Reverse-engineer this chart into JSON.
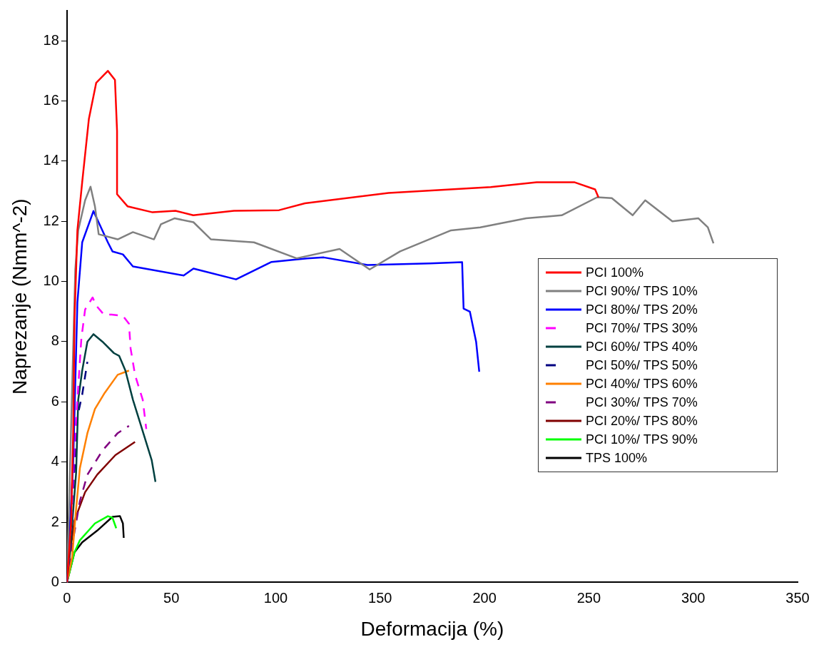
{
  "chart_data": {
    "type": "line",
    "xlabel": "Deformacija (%)",
    "ylabel": "Naprezanje (Nmm^-2)",
    "xlim": [
      0,
      350
    ],
    "xticks": [
      0,
      50,
      100,
      150,
      200,
      250,
      300,
      350
    ],
    "ylim": [
      0,
      19
    ],
    "yticks": [
      0,
      2,
      4,
      6,
      8,
      10,
      12,
      14,
      16,
      18
    ],
    "grid": false,
    "legend": "right",
    "marker": "none",
    "series": [
      {
        "name": "PCI 100%",
        "color": "#ff0000",
        "line_style": "solid",
        "x": [
          0,
          2,
          3,
          3.6,
          5,
          7.3,
          10.5,
          14,
          19.6,
          23,
          24,
          24,
          29,
          41,
          52,
          60.5,
          80,
          101.6,
          114,
          154,
          203,
          225,
          243,
          253,
          254.6
        ],
        "values": [
          0,
          2,
          5,
          8.7,
          11.7,
          13.3,
          15.4,
          16.6,
          17.0,
          16.7,
          15,
          12.9,
          12.5,
          12.3,
          12.35,
          12.2,
          12.35,
          12.37,
          12.6,
          12.94,
          13.14,
          13.3,
          13.3,
          13.06,
          12.8
        ]
      },
      {
        "name": "PCI 90%/ TPS 10%",
        "color": "#808080",
        "line_style": "solid",
        "x": [
          0,
          4,
          5.4,
          8.7,
          11.3,
          13.4,
          15.2,
          24.3,
          31.6,
          41.7,
          45,
          51.5,
          60.6,
          69,
          89.6,
          110,
          130.6,
          145,
          159.6,
          184,
          198,
          220,
          237,
          254,
          261,
          271,
          277,
          290,
          302.5,
          307,
          309.7
        ],
        "values": [
          0,
          10.4,
          11.7,
          12.7,
          13.15,
          12.5,
          11.57,
          11.4,
          11.64,
          11.4,
          11.9,
          12.1,
          11.97,
          11.4,
          11.3,
          10.77,
          11.08,
          10.4,
          11.0,
          11.7,
          11.8,
          12.1,
          12.2,
          12.8,
          12.77,
          12.2,
          12.7,
          12.0,
          12.1,
          11.8,
          11.27
        ]
      },
      {
        "name": "PCI 80%/ TPS 20%",
        "color": "#0000ff",
        "line_style": "solid",
        "x": [
          0,
          3,
          5,
          7.3,
          12.7,
          19.6,
          21.8,
          26.8,
          31.6,
          55.9,
          60.6,
          81,
          98,
          115,
          123,
          144,
          174,
          189.3,
          190,
          193,
          196,
          197.5
        ],
        "values": [
          0,
          4,
          9.3,
          11.3,
          12.34,
          11.3,
          11.0,
          10.9,
          10.5,
          10.2,
          10.43,
          10.07,
          10.65,
          10.77,
          10.8,
          10.55,
          10.6,
          10.64,
          9.1,
          9.0,
          8.0,
          7.0
        ]
      },
      {
        "name": "PCI 70%/ TPS 30%",
        "color": "#ff00ff",
        "line_style": "dashed",
        "x": [
          0,
          2,
          4,
          6.9,
          8.7,
          12.3,
          14,
          17.7,
          21.4,
          26.8,
          29.7,
          30.5,
          32.6,
          36.3,
          38
        ],
        "values": [
          0,
          2,
          5,
          8.1,
          9.07,
          9.47,
          9.2,
          8.9,
          8.9,
          8.86,
          8.6,
          7.77,
          6.9,
          6.07,
          5.1
        ]
      },
      {
        "name": "PCI 60%/ TPS 40%",
        "color": "#004040",
        "line_style": "solid",
        "x": [
          0,
          2,
          4.4,
          5.4,
          7.3,
          9.8,
          12.7,
          17,
          22.5,
          25,
          28,
          31.6,
          35.2,
          40.6,
          42.4
        ],
        "values": [
          0,
          1.5,
          3.65,
          6.07,
          7.04,
          8.0,
          8.25,
          8.0,
          7.62,
          7.53,
          7.04,
          6.07,
          5.27,
          4.06,
          3.34
        ]
      },
      {
        "name": "PCI 50%/ TPS 50%",
        "color": "#000080",
        "line_style": "dashed",
        "x": [
          0,
          1.8,
          3.6,
          5,
          7.3,
          9.8
        ],
        "values": [
          0,
          2.05,
          3.65,
          5.5,
          6.24,
          7.33
        ]
      },
      {
        "name": "PCI 40%/ TPS 60%",
        "color": "#ff8000",
        "line_style": "solid",
        "x": [
          0,
          2.5,
          4.4,
          6.2,
          9.8,
          13.4,
          18.1,
          24.3,
          29.7
        ],
        "values": [
          0,
          0.85,
          2.45,
          3.8,
          4.96,
          5.76,
          6.3,
          6.9,
          7.04
        ]
      },
      {
        "name": "PCI 30%/ TPS 70%",
        "color": "#800080",
        "line_style": "dashed",
        "x": [
          0,
          2.5,
          6.2,
          9.8,
          17,
          24.3,
          29.7
        ],
        "values": [
          0,
          1.24,
          2.7,
          3.58,
          4.38,
          4.96,
          5.2
        ]
      },
      {
        "name": "PCI 20%/ TPS 80%",
        "color": "#800000",
        "line_style": "solid",
        "x": [
          0,
          1.5,
          3.6,
          8.7,
          14.5,
          23.2,
          32.6
        ],
        "values": [
          0,
          1,
          2.05,
          3.0,
          3.58,
          4.23,
          4.67
        ]
      },
      {
        "name": "PCI 10%/ TPS 90%",
        "color": "#00ff00",
        "line_style": "solid",
        "x": [
          0,
          3.6,
          6.2,
          13.4,
          19.6,
          21.8,
          23.6
        ],
        "values": [
          0,
          1.0,
          1.4,
          1.96,
          2.2,
          2.15,
          1.8
        ]
      },
      {
        "name": "TPS 100%",
        "color": "#000000",
        "line_style": "solid",
        "x": [
          0,
          3.6,
          7.3,
          14.5,
          21.8,
          25.4,
          26.8,
          27.2
        ],
        "values": [
          0,
          1.0,
          1.33,
          1.72,
          2.18,
          2.2,
          1.96,
          1.48
        ]
      }
    ]
  }
}
